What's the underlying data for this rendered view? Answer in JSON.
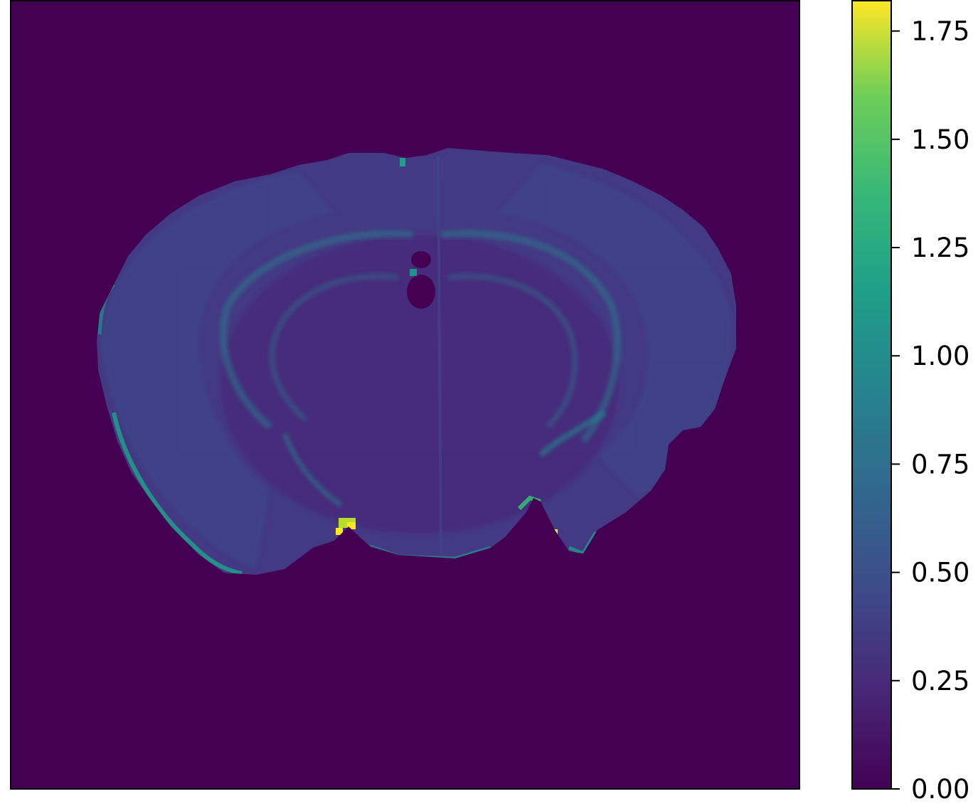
{
  "chart_data": {
    "type": "heatmap",
    "title": "",
    "xlabel": "",
    "ylabel": "",
    "axes_ticks_shown": false,
    "colormap": "viridis",
    "value_range": [
      0.0,
      1.82
    ],
    "background_value": 0.0,
    "colorbar": {
      "position": "right",
      "ticks": [
        0.0,
        0.25,
        0.5,
        0.75,
        1.0,
        1.25,
        1.5,
        1.75
      ],
      "tick_labels": [
        "0.00",
        "0.25",
        "0.50",
        "0.75",
        "1.00",
        "1.25",
        "1.50",
        "1.75"
      ]
    },
    "image_description_values": {
      "tissue_typical": 0.45,
      "white_matter_bands": 0.65,
      "rim_highlights": 1.1,
      "peak": 1.8
    },
    "colors": {
      "viridis_low": "#440154",
      "viridis_q1": "#3b528b",
      "viridis_mid": "#21918c",
      "viridis_q3": "#5ec962",
      "viridis_high": "#fde725"
    }
  }
}
